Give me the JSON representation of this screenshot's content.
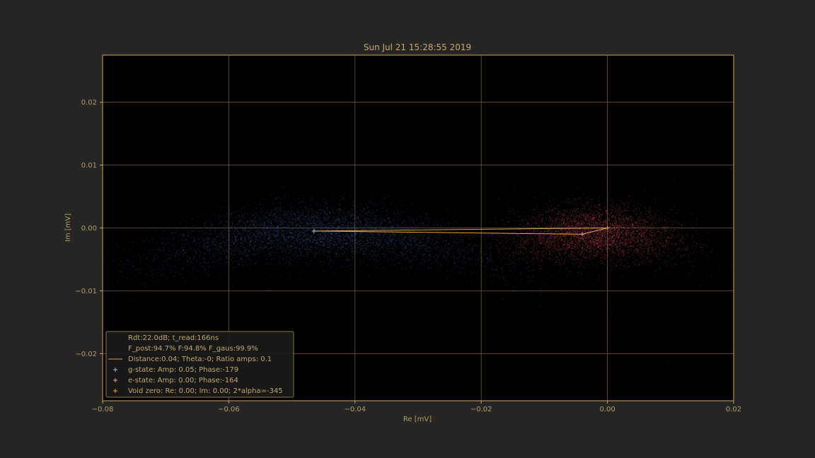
{
  "chart_data": {
    "type": "scatter",
    "title": "Sun Jul 21 15:28:55 2019",
    "xlabel": "Re [mV]",
    "ylabel": "Im [mV]",
    "xlim": [
      -0.08,
      0.02
    ],
    "ylim": [
      -0.0275,
      0.0275
    ],
    "x_ticks": [
      -0.08,
      -0.06,
      -0.04,
      -0.02,
      0.0,
      0.02
    ],
    "x_tick_labels": [
      "−0.08",
      "−0.06",
      "−0.04",
      "−0.02",
      "0.00",
      "0.02"
    ],
    "y_ticks": [
      -0.02,
      -0.01,
      0.0,
      0.01,
      0.02
    ],
    "y_tick_labels": [
      "−0.02",
      "−0.01",
      "0.00",
      "0.01",
      "0.02"
    ],
    "grid": true,
    "legend_position": "lower-left",
    "colors": {
      "background": "#262626",
      "plot_background": "#000000",
      "frame": "#c8a465",
      "grid": "#6b5a38",
      "g_state": "#4d6fc9",
      "e_state": "#e8505e",
      "void_zero": "#f0a030",
      "distance_line": "#d4a24a",
      "connector": "#f0a030"
    },
    "clouds": [
      {
        "name": "g-state",
        "color": "#4d6fc9",
        "center": [
          -0.046,
          -0.0005
        ],
        "spread_x": 0.013,
        "spread_y": 0.0022,
        "curvature": 6.0,
        "count": 5500
      },
      {
        "name": "e-state",
        "color": "#e8505e",
        "center": [
          -0.002,
          -0.0008
        ],
        "spread_x": 0.0065,
        "spread_y": 0.0022,
        "curvature": 6.0,
        "count": 5000
      }
    ],
    "markers": [
      {
        "name": "g-state",
        "x": -0.0465,
        "y": -0.0005,
        "color": "#aab4e0"
      },
      {
        "name": "e-state",
        "x": -0.004,
        "y": -0.001,
        "color": "#e4a0a8"
      },
      {
        "name": "void-zero",
        "x": 0.0,
        "y": 0.0,
        "color": "#f0a030"
      }
    ],
    "lines": [
      {
        "name": "distance",
        "x": [
          -0.0465,
          0.0
        ],
        "y": [
          -0.0005,
          0.0
        ],
        "color": "#d4a24a"
      },
      {
        "name": "connector",
        "x": [
          -0.0465,
          -0.004,
          0.0
        ],
        "y": [
          -0.0005,
          -0.001,
          0.0
        ],
        "color": "#f0a030"
      }
    ],
    "legend": [
      {
        "text": "Rdt:22.0dB; t_read:166ns",
        "marker": "none",
        "color": ""
      },
      {
        "text": "F_post:94.7% F:94.8% F_gaus:99.9%",
        "marker": "none",
        "color": ""
      },
      {
        "text": "Distance:0.04; Theta:-0; Ratio amps:  0.1",
        "marker": "line",
        "color": "#d4a24a"
      },
      {
        "text": "g-state: Amp: 0.05; Phase:-179",
        "marker": "plus",
        "color": "#aab4e0"
      },
      {
        "text": "e-state: Amp: 0.00; Phase:-164",
        "marker": "plus",
        "color": "#e4a0a8"
      },
      {
        "text": "Void zero: Re: 0.00; Im: 0.00; 2*alpha=-345",
        "marker": "plus",
        "color": "#f0a030"
      }
    ]
  }
}
